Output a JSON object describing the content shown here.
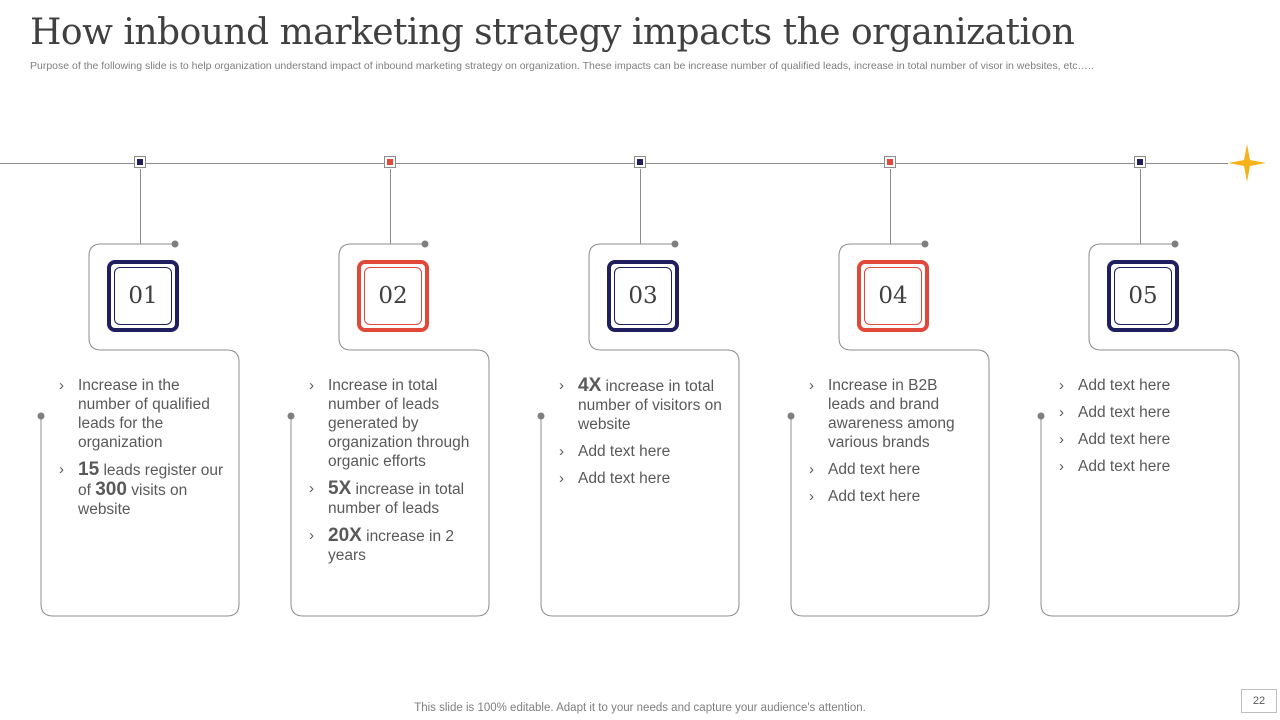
{
  "header": {
    "title": "How inbound marketing strategy impacts the organization",
    "subtitle": "Purpose of the following slide is to help organization understand impact of inbound marketing strategy on organization. These impacts can be increase number of qualified leads, increase in total number of visor in websites, etc….."
  },
  "colors": {
    "navy": "#1f1f5f",
    "red": "#e0493a",
    "star": "#f5b21b"
  },
  "steps": [
    {
      "number": "01",
      "accent": "blue",
      "items": [
        {
          "text": "Increase in the number of qualified leads for the organization"
        },
        {
          "parts": [
            {
              "b": "15"
            },
            {
              "t": " leads register our of "
            },
            {
              "b": "300"
            },
            {
              "t": " visits on website"
            }
          ]
        }
      ]
    },
    {
      "number": "02",
      "accent": "red",
      "items": [
        {
          "text": "Increase in total number of leads generated by organization through organic efforts"
        },
        {
          "parts": [
            {
              "b": "5X"
            },
            {
              "t": " increase in total number of leads"
            }
          ]
        },
        {
          "parts": [
            {
              "b": "20X"
            },
            {
              "t": " increase in 2 years"
            }
          ]
        }
      ]
    },
    {
      "number": "03",
      "accent": "blue",
      "items": [
        {
          "parts": [
            {
              "b": "4X"
            },
            {
              "t": " increase in total number of visitors on website"
            }
          ]
        },
        {
          "text": "Add text here"
        },
        {
          "text": "Add text here"
        }
      ]
    },
    {
      "number": "04",
      "accent": "red",
      "items": [
        {
          "text": "Increase in B2B leads and brand awareness among various brands"
        },
        {
          "text": "Add text here"
        },
        {
          "text": "Add text here"
        }
      ]
    },
    {
      "number": "05",
      "accent": "blue",
      "items": [
        {
          "text": "Add text here"
        },
        {
          "text": "Add text here"
        },
        {
          "text": "Add text here"
        },
        {
          "text": "Add text here"
        }
      ]
    }
  ],
  "footer": {
    "note": "This slide is 100% editable. Adapt it to your needs and capture your audience's attention.",
    "page": "22"
  }
}
